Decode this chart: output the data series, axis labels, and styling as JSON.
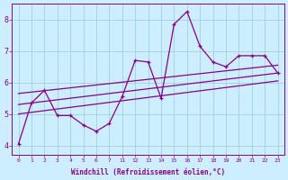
{
  "xlabel": "Windchill (Refroidissement éolien,°C)",
  "bg_color": "#cceeff",
  "line_color": "#880088",
  "grid_color": "#99cccc",
  "ylim": [
    3.7,
    8.5
  ],
  "yticks": [
    4,
    5,
    6,
    7,
    8
  ],
  "xlim": [
    -0.5,
    20.5
  ],
  "xtick_labels": [
    "0",
    "1",
    "2",
    "3",
    "4",
    "5",
    "6",
    "7",
    "11",
    "12",
    "13",
    "14",
    "15",
    "16",
    "17",
    "18",
    "19",
    "20",
    "21",
    "22",
    "23"
  ],
  "main_x": [
    0,
    1,
    2,
    3,
    4,
    5,
    6,
    7,
    8,
    9,
    10,
    11,
    12,
    13,
    14,
    15,
    16,
    17,
    18,
    19,
    20
  ],
  "main_y": [
    4.05,
    5.35,
    5.75,
    4.95,
    4.95,
    4.65,
    4.45,
    4.7,
    5.55,
    6.7,
    6.65,
    5.5,
    7.85,
    8.25,
    7.15,
    6.65,
    6.5,
    6.85,
    6.85,
    6.85,
    6.3
  ],
  "trend1_x": [
    0,
    20
  ],
  "trend1_y": [
    5.0,
    6.05
  ],
  "trend2_x": [
    0,
    20
  ],
  "trend2_y": [
    5.3,
    6.3
  ],
  "trend3_x": [
    0,
    20
  ],
  "trend3_y": [
    5.65,
    6.55
  ]
}
